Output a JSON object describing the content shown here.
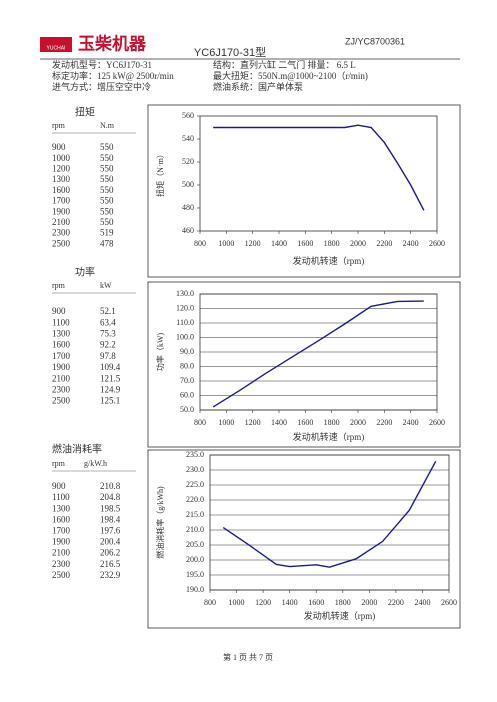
{
  "header": {
    "doc_id": "ZJ/YC8700361",
    "logo_text": "玉柴机器",
    "logo_sub": "YUCHAI",
    "model_title": "YC6J170-31型"
  },
  "specs": [
    [
      "发动机型号：YC6J170-31",
      "结构：直列六缸 二气门 排量： 6.5 L"
    ],
    [
      "标定功率：125 kW@ 2500r/min",
      "最大扭矩：550N.m@1000~2100（r/min)"
    ],
    [
      "进气方式：增压空空中冷",
      "燃油系统：国产单体泵"
    ]
  ],
  "tables": [
    {
      "title": "扭矩",
      "columns": [
        "rpm",
        "N.m"
      ],
      "rows": [
        [
          "900",
          "550"
        ],
        [
          "1000",
          "550"
        ],
        [
          "1200",
          "550"
        ],
        [
          "1300",
          "550"
        ],
        [
          "1600",
          "550"
        ],
        [
          "1700",
          "550"
        ],
        [
          "1900",
          "550"
        ],
        [
          "2100",
          "550"
        ],
        [
          "2300",
          "519"
        ],
        [
          "2500",
          "478"
        ]
      ]
    },
    {
      "title": "功率",
      "columns": [
        "rpm",
        "kW"
      ],
      "rows": [
        [
          "900",
          "52.1"
        ],
        [
          "1100",
          "63.4"
        ],
        [
          "1300",
          "75.3"
        ],
        [
          "1600",
          "92.2"
        ],
        [
          "1700",
          "97.8"
        ],
        [
          "1900",
          "109.4"
        ],
        [
          "2100",
          "121.5"
        ],
        [
          "2300",
          "124.9"
        ],
        [
          "2500",
          "125.1"
        ]
      ]
    },
    {
      "title": "燃油消耗率",
      "columns": [
        "rpm",
        "g/kW.h"
      ],
      "rows": [
        [
          "900",
          "210.8"
        ],
        [
          "1100",
          "204.8"
        ],
        [
          "1300",
          "198.5"
        ],
        [
          "1600",
          "198.4"
        ],
        [
          "1700",
          "197.6"
        ],
        [
          "1900",
          "200.4"
        ],
        [
          "2100",
          "206.2"
        ],
        [
          "2300",
          "216.5"
        ],
        [
          "2500",
          "232.9"
        ]
      ]
    }
  ],
  "chart_data": [
    {
      "type": "line",
      "x_label": "发动机转速（rpm)",
      "y_label": "扭矩（N·m）",
      "color": "#1a1a8c",
      "grid": false,
      "x": [
        900,
        1000,
        1200,
        1400,
        1600,
        1800,
        1900,
        2000,
        2100,
        2200,
        2300,
        2400,
        2500
      ],
      "values": [
        550,
        550,
        550,
        550,
        550,
        550,
        550,
        552,
        550,
        537,
        519,
        500,
        478
      ],
      "xlim": [
        800,
        2600
      ],
      "xticks": [
        800,
        1000,
        1200,
        1400,
        1600,
        1800,
        2000,
        2200,
        2400,
        2600
      ],
      "ylim": [
        460,
        560
      ],
      "yticks": [
        460,
        480,
        500,
        520,
        540,
        560
      ]
    },
    {
      "type": "line",
      "x_label": "发动机转速（rpm)",
      "y_label": "功率（kW)",
      "color": "#1a1a8c",
      "grid": true,
      "x": [
        900,
        1100,
        1300,
        1600,
        1700,
        1900,
        2100,
        2300,
        2500
      ],
      "values": [
        52.1,
        63.4,
        75.3,
        92.2,
        97.8,
        109.4,
        121.5,
        124.9,
        125.1
      ],
      "xlim": [
        800,
        2600
      ],
      "xticks": [
        800,
        1000,
        1200,
        1400,
        1600,
        1800,
        2000,
        2200,
        2400,
        2600
      ],
      "ylim": [
        50,
        130
      ],
      "yticks": [
        {
          "value": 50,
          "label": "50.0"
        },
        {
          "value": 60,
          "label": "60.0"
        },
        {
          "value": 70,
          "label": "70.0"
        },
        {
          "value": 80,
          "label": "80.0"
        },
        {
          "value": 90,
          "label": "90.0"
        },
        {
          "value": 100,
          "label": "100.0"
        },
        {
          "value": 110,
          "label": "110.0"
        },
        {
          "value": 120,
          "label": "120.0"
        },
        {
          "value": 130,
          "label": "130.0"
        }
      ]
    },
    {
      "type": "line",
      "x_label": "发动机转速（rpm)",
      "y_label": "燃油消耗率（g/kWh)",
      "color": "#1a1a8c",
      "grid": true,
      "x": [
        900,
        1100,
        1300,
        1400,
        1600,
        1700,
        1900,
        2100,
        2300,
        2500
      ],
      "values": [
        210.8,
        204.8,
        198.5,
        197.8,
        198.4,
        197.6,
        200.4,
        206.2,
        216.5,
        232.9
      ],
      "xlim": [
        800,
        2600
      ],
      "xticks": [
        800,
        1000,
        1200,
        1400,
        1600,
        1800,
        2000,
        2200,
        2400,
        2600
      ],
      "ylim": [
        190,
        235
      ],
      "yticks": [
        {
          "value": 190,
          "label": "190.0"
        },
        {
          "value": 195,
          "label": "195.0"
        },
        {
          "value": 200,
          "label": "200.0"
        },
        {
          "value": 205,
          "label": "205.0"
        },
        {
          "value": 210,
          "label": "210.0"
        },
        {
          "value": 215,
          "label": "215.0"
        },
        {
          "value": 220,
          "label": "220.0"
        },
        {
          "value": 225,
          "label": "225.0"
        },
        {
          "value": 230,
          "label": "230.0"
        },
        {
          "value": 235,
          "label": "235.0"
        }
      ]
    }
  ],
  "footer": "第 1 页   共 7 页"
}
